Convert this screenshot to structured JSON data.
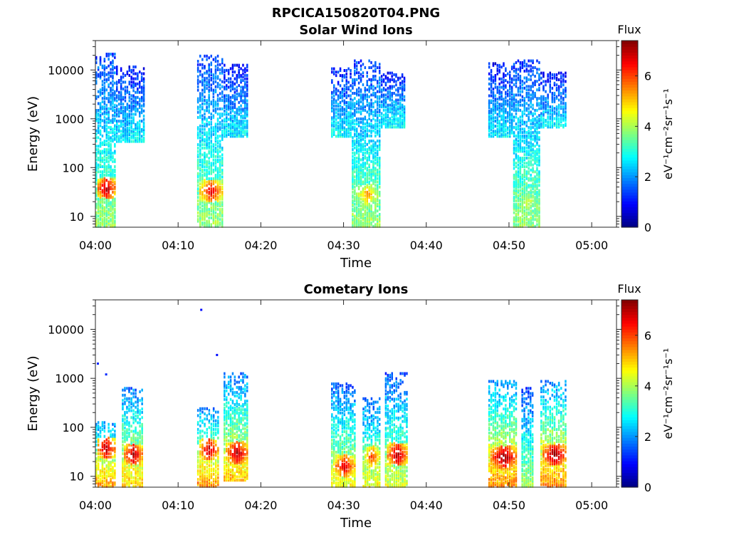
{
  "figure": {
    "filename_title": "RPCICA150820T04.PNG"
  },
  "colormap": {
    "name": "jet",
    "stops": [
      "#00007f",
      "#0000ff",
      "#007fff",
      "#00ffff",
      "#7fff7f",
      "#ffff00",
      "#ff7f00",
      "#ff0000",
      "#7f0000"
    ]
  },
  "chart_data": [
    {
      "type": "heatmap",
      "title": "Solar Wind Ions",
      "xlabel": "Time",
      "ylabel": "Energy (eV)",
      "yscale": "log",
      "xlim": [
        "04:00",
        "05:03"
      ],
      "ylim": [
        6,
        40000
      ],
      "xticks": [
        "04:00",
        "04:10",
        "04:20",
        "04:30",
        "04:40",
        "04:50",
        "05:00"
      ],
      "yticks": [
        10,
        100,
        1000,
        10000
      ],
      "ytick_labels": [
        "10",
        "100",
        "1000",
        "10000"
      ],
      "colorbar": {
        "label": "Flux",
        "unit": "eV⁻¹cm⁻²sr⁻¹s⁻¹",
        "range": [
          0,
          7.4
        ],
        "ticks": [
          0,
          2,
          4,
          6
        ]
      },
      "clusters": [
        {
          "t_start": 0.0,
          "t_end": 2.5,
          "e_min": 6,
          "e_max": 22000,
          "flux_core": 3.4,
          "peak_energy": 38,
          "peak_flux": 7.0
        },
        {
          "t_start": 2.5,
          "t_end": 6.0,
          "e_min": 330,
          "e_max": 12000,
          "flux_core": 2.4
        },
        {
          "t_start": 12.3,
          "t_end": 15.5,
          "e_min": 6,
          "e_max": 20000,
          "flux_core": 3.4,
          "peak_energy": 33,
          "peak_flux": 6.5
        },
        {
          "t_start": 15.5,
          "t_end": 18.5,
          "e_min": 420,
          "e_max": 13000,
          "flux_core": 2.4
        },
        {
          "t_start": 28.5,
          "t_end": 31.0,
          "e_min": 420,
          "e_max": 11000,
          "flux_core": 2.5
        },
        {
          "t_start": 31.0,
          "t_end": 34.5,
          "e_min": 6,
          "e_max": 16000,
          "flux_core": 3.4,
          "peak_energy": 28,
          "peak_flux": 5.2
        },
        {
          "t_start": 34.5,
          "t_end": 37.5,
          "e_min": 650,
          "e_max": 9000,
          "flux_core": 2.5
        },
        {
          "t_start": 47.5,
          "t_end": 50.5,
          "e_min": 420,
          "e_max": 14000,
          "flux_core": 2.4
        },
        {
          "t_start": 50.5,
          "t_end": 53.8,
          "e_min": 6,
          "e_max": 16000,
          "flux_core": 3.4,
          "peak_energy": 20,
          "peak_flux": 4.3
        },
        {
          "t_start": 53.8,
          "t_end": 57.0,
          "e_min": 650,
          "e_max": 9000,
          "flux_core": 2.4
        }
      ]
    },
    {
      "type": "heatmap",
      "title": "Cometary Ions",
      "xlabel": "Time",
      "ylabel": "Energy (eV)",
      "yscale": "log",
      "xlim": [
        "04:00",
        "05:03"
      ],
      "ylim": [
        6,
        40000
      ],
      "xticks": [
        "04:00",
        "04:10",
        "04:20",
        "04:30",
        "04:40",
        "04:50",
        "05:00"
      ],
      "yticks": [
        10,
        100,
        1000,
        10000
      ],
      "ytick_labels": [
        "10",
        "100",
        "1000",
        "10000"
      ],
      "colorbar": {
        "label": "Flux",
        "unit": "eV⁻¹cm⁻²sr⁻¹s⁻¹",
        "range": [
          0,
          7.4
        ],
        "ticks": [
          0,
          2,
          4,
          6
        ]
      },
      "clusters": [
        {
          "t_start": 0.0,
          "t_end": 2.5,
          "e_min": 6,
          "e_max": 130,
          "flux_core": 4.8,
          "peak_energy": 38,
          "peak_flux": 7.0
        },
        {
          "t_start": 3.2,
          "t_end": 5.8,
          "e_min": 6,
          "e_max": 650,
          "flux_core": 4.4,
          "peak_energy": 28,
          "peak_flux": 7.0
        },
        {
          "t_start": 12.3,
          "t_end": 15.0,
          "e_min": 6,
          "e_max": 250,
          "flux_core": 4.8,
          "peak_energy": 35,
          "peak_flux": 6.8
        },
        {
          "t_start": 15.5,
          "t_end": 18.5,
          "e_min": 8,
          "e_max": 1300,
          "flux_core": 4.4,
          "peak_energy": 30,
          "peak_flux": 7.0
        },
        {
          "t_start": 28.5,
          "t_end": 31.5,
          "e_min": 6,
          "e_max": 800,
          "flux_core": 4.0,
          "peak_energy": 16,
          "peak_flux": 6.6
        },
        {
          "t_start": 32.3,
          "t_end": 34.5,
          "e_min": 6,
          "e_max": 400,
          "flux_core": 4.0,
          "peak_energy": 25,
          "peak_flux": 6.0
        },
        {
          "t_start": 35.0,
          "t_end": 37.8,
          "e_min": 6,
          "e_max": 1300,
          "flux_core": 3.8,
          "peak_energy": 28,
          "peak_flux": 7.0
        },
        {
          "t_start": 47.5,
          "t_end": 51.0,
          "e_min": 6,
          "e_max": 900,
          "flux_core": 4.8,
          "peak_energy": 25,
          "peak_flux": 7.2
        },
        {
          "t_start": 51.5,
          "t_end": 53.0,
          "e_min": 6,
          "e_max": 650,
          "flux_core": 3.5
        },
        {
          "t_start": 53.8,
          "t_end": 57.0,
          "e_min": 6,
          "e_max": 900,
          "flux_core": 4.8,
          "peak_energy": 28,
          "peak_flux": 7.2
        }
      ],
      "isolated_points": [
        {
          "t": 0.3,
          "energy": 2000,
          "flux": 1.2
        },
        {
          "t": 1.3,
          "energy": 1200,
          "flux": 1.2
        },
        {
          "t": 12.8,
          "energy": 25000,
          "flux": 1.0
        },
        {
          "t": 14.7,
          "energy": 3000,
          "flux": 1.0
        }
      ]
    }
  ]
}
